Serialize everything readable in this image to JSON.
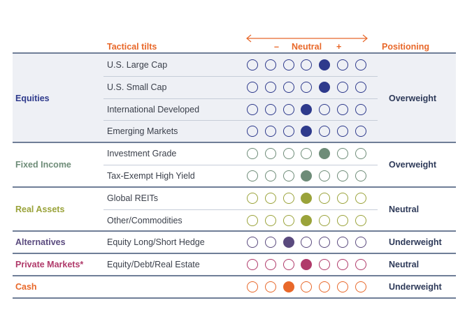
{
  "headers": {
    "tactical_tilts": "Tactical tilts",
    "minus": "–",
    "neutral": "Neutral",
    "plus": "+",
    "positioning": "Positioning"
  },
  "colors": {
    "header": "#e8682a",
    "rule": "#6f7e97",
    "band": "#eef0f5"
  },
  "chart_data": {
    "type": "table",
    "scale_points": 7,
    "groups": [
      {
        "name": "Equities",
        "color": "#2e3a8c",
        "positioning": "Overweight",
        "rows": [
          {
            "label": "U.S. Large Cap",
            "tilt": 5
          },
          {
            "label": "U.S. Small Cap",
            "tilt": 5
          },
          {
            "label": "International Developed",
            "tilt": 4
          },
          {
            "label": "Emerging Markets",
            "tilt": 4
          }
        ]
      },
      {
        "name": "Fixed Income",
        "color": "#6e8c78",
        "positioning": "Overweight",
        "rows": [
          {
            "label": "Investment Grade",
            "tilt": 5
          },
          {
            "label": "Tax-Exempt High Yield",
            "tilt": 4
          }
        ]
      },
      {
        "name": "Real Assets",
        "color": "#9aa33a",
        "positioning": "Neutral",
        "rows": [
          {
            "label": "Global REITs",
            "tilt": 4
          },
          {
            "label": "Other/Commodities",
            "tilt": 4
          }
        ]
      },
      {
        "name": "Alternatives",
        "color": "#5a4a7e",
        "positioning": "Underweight",
        "rows": [
          {
            "label": "Equity Long/Short Hedge",
            "tilt": 3
          }
        ]
      },
      {
        "name": "Private Markets*",
        "color": "#b03a6a",
        "positioning": "Neutral",
        "rows": [
          {
            "label": "Equity/Debt/Real Estate",
            "tilt": 4
          }
        ]
      },
      {
        "name": "Cash",
        "color": "#e8682a",
        "positioning": "Underweight",
        "rows": [
          {
            "label": "",
            "tilt": 3
          }
        ]
      }
    ]
  }
}
